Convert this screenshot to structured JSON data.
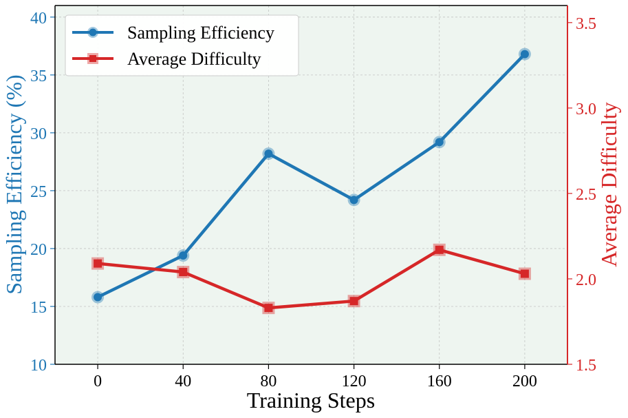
{
  "chart_data": {
    "type": "line",
    "xlabel": "Training Steps",
    "ylabel_left": "Sampling Efficiency (%)",
    "ylabel_right": "Average Difficulty",
    "x": [
      0,
      40,
      80,
      120,
      160,
      200
    ],
    "xlim": [
      -20,
      220
    ],
    "ylim_left": [
      10,
      41
    ],
    "ylim_right": [
      1.5,
      3.6
    ],
    "x_ticks": [
      "0",
      "40",
      "80",
      "120",
      "160",
      "200"
    ],
    "y_left_ticks": [
      "10",
      "15",
      "20",
      "25",
      "30",
      "35",
      "40"
    ],
    "y_right_ticks": [
      "1.5",
      "2.0",
      "2.5",
      "3.0",
      "3.5"
    ],
    "grid": true,
    "legend_position": "top-left",
    "series": [
      {
        "name": "Sampling Efficiency",
        "axis": "left",
        "marker": "circle",
        "color": "#1f77b4",
        "values": [
          15.8,
          19.4,
          28.2,
          24.2,
          29.2,
          36.8
        ]
      },
      {
        "name": "Average Difficulty",
        "axis": "right",
        "marker": "square",
        "color": "#d62728",
        "values": [
          2.09,
          2.04,
          1.83,
          1.87,
          2.17,
          2.03
        ]
      }
    ],
    "colors": {
      "plot_background": "#eef5f0",
      "left_axis": "#1f77b4",
      "right_axis": "#d62728"
    }
  }
}
